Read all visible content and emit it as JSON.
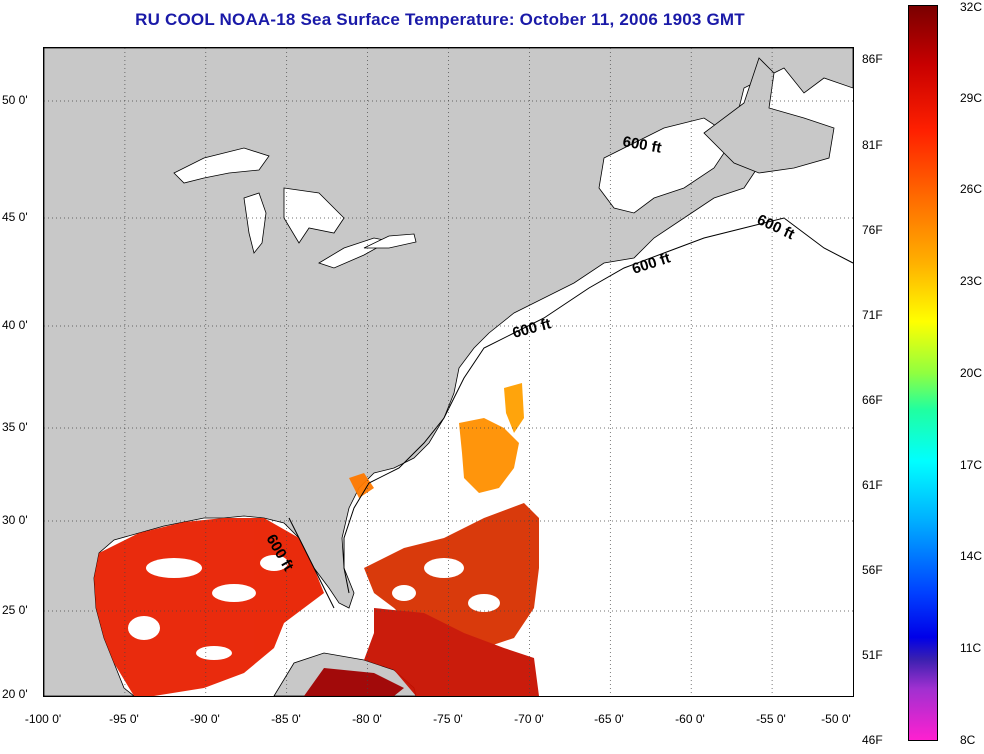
{
  "title": "RU COOL  NOAA-18  Sea Surface Temperature:  October 11, 2006 1903 GMT",
  "x_axis_ticks": [
    "-100 0'",
    "-95 0'",
    "-90 0'",
    "-85 0'",
    "-80 0'",
    "-75 0'",
    "-70 0'",
    "-65 0'",
    "-60 0'",
    "-55 0'",
    "-50 0'"
  ],
  "y_axis_ticks": [
    "50 0'",
    "45 0'",
    "40 0'",
    "35 0'",
    "30 0'",
    "25 0'",
    "20 0'"
  ],
  "contour_labels": [
    "600 ft",
    "600 ft",
    "600 ft",
    "600 ft",
    "600 ft"
  ],
  "colorbar": {
    "celsius": [
      "32C",
      "29C",
      "26C",
      "23C",
      "20C",
      "17C",
      "14C",
      "11C",
      "8C"
    ],
    "fahrenheit": [
      "86F",
      "81F",
      "76F",
      "71F",
      "66F",
      "61F",
      "56F",
      "51F",
      "46F"
    ]
  },
  "colors": {
    "land": "#c8c8c8",
    "ocean_no_data": "#ffffff",
    "title": "#1a1aa8",
    "warm_sst": "#e82000",
    "hot_sst": "#a00000"
  }
}
